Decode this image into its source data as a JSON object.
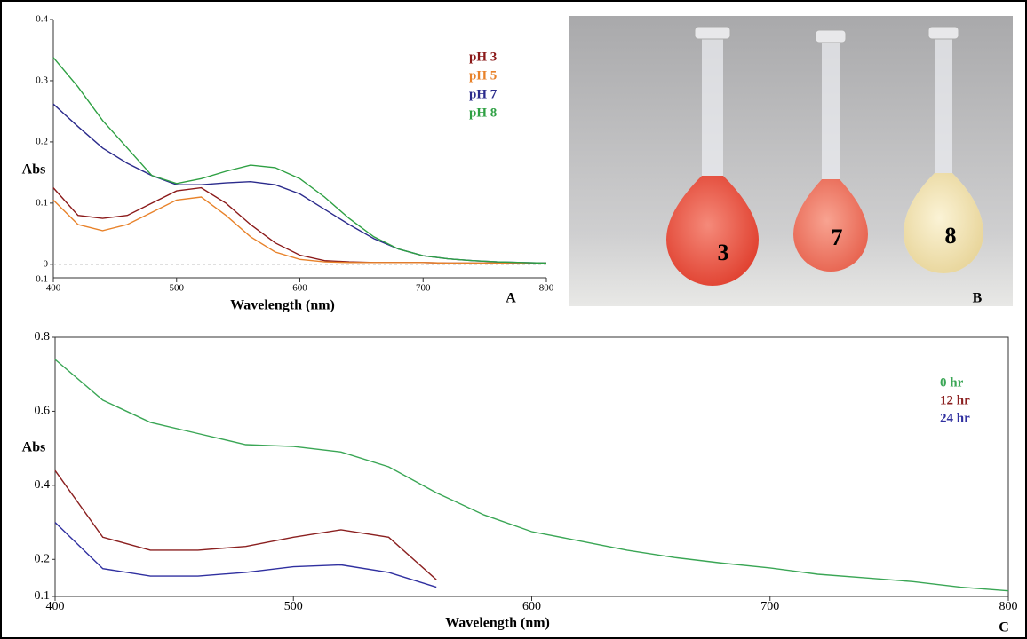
{
  "chart_data": [
    {
      "type": "line",
      "panel_label": "A",
      "x_label": "Wavelength (nm)",
      "y_label": "Abs",
      "x": [
        400,
        420,
        440,
        460,
        480,
        500,
        520,
        540,
        560,
        580,
        600,
        620,
        640,
        660,
        680,
        700,
        720,
        740,
        760,
        780,
        800
      ],
      "xlim": [
        400,
        800
      ],
      "xticks": [
        400,
        500,
        600,
        700,
        800
      ],
      "ylim": [
        -0.022,
        0.4
      ],
      "yticks": [
        0,
        0.1,
        0.2,
        0.3,
        0.4
      ],
      "ymin_label": "0.1",
      "hline": 0,
      "series": [
        {
          "name": "pH 3",
          "color": "#8b1a1a",
          "values": [
            0.125,
            0.08,
            0.075,
            0.08,
            0.1,
            0.12,
            0.125,
            0.1,
            0.065,
            0.035,
            0.015,
            0.006,
            0.004,
            0.003,
            0.003,
            0.003,
            0.002,
            0.002,
            0.002,
            0.002,
            0.002
          ]
        },
        {
          "name": "pH 5",
          "color": "#e8822a",
          "values": [
            0.105,
            0.065,
            0.055,
            0.065,
            0.085,
            0.105,
            0.11,
            0.08,
            0.045,
            0.02,
            0.008,
            0.004,
            0.003,
            0.003,
            0.003,
            0.003,
            0.002,
            0.002,
            0.002,
            0.002,
            0.002
          ]
        },
        {
          "name": "pH 7",
          "color": "#2b2b8c",
          "values": [
            0.262,
            0.225,
            0.19,
            0.165,
            0.145,
            0.13,
            0.13,
            0.133,
            0.135,
            0.13,
            0.115,
            0.09,
            0.065,
            0.042,
            0.025,
            0.014,
            0.009,
            0.006,
            0.004,
            0.003,
            0.002
          ]
        },
        {
          "name": "pH 8",
          "color": "#2ea043",
          "values": [
            0.338,
            0.29,
            0.235,
            0.19,
            0.145,
            0.132,
            0.14,
            0.152,
            0.162,
            0.158,
            0.14,
            0.11,
            0.075,
            0.045,
            0.025,
            0.014,
            0.009,
            0.006,
            0.004,
            0.003,
            0.002
          ]
        }
      ]
    },
    {
      "type": "line",
      "panel_label": "C",
      "x_label": "Wavelength (nm)",
      "y_label": "Abs",
      "x": [
        400,
        420,
        440,
        460,
        480,
        500,
        520,
        540,
        560,
        580,
        600,
        620,
        640,
        660,
        680,
        700,
        720,
        740,
        760,
        780,
        800
      ],
      "xlim": [
        400,
        800
      ],
      "xticks": [
        400,
        500,
        600,
        700,
        800
      ],
      "ylim": [
        0.1,
        0.8
      ],
      "yticks": [
        0.1,
        0.2,
        0.4,
        0.6,
        0.8
      ],
      "series": [
        {
          "name": "0 hr",
          "color": "#3aa655",
          "values": [
            0.74,
            0.63,
            0.57,
            0.54,
            0.51,
            0.505,
            0.49,
            0.45,
            0.38,
            0.32,
            0.275,
            0.25,
            0.225,
            0.205,
            0.19,
            0.177,
            0.16,
            0.15,
            0.14,
            0.125,
            0.115
          ]
        },
        {
          "name": "12 hr",
          "color": "#8b2020",
          "values": [
            0.44,
            0.26,
            0.225,
            0.225,
            0.235,
            0.26,
            0.28,
            0.26,
            0.145,
            null,
            null,
            null,
            null,
            null,
            null,
            null,
            null,
            null,
            null,
            null,
            null
          ]
        },
        {
          "name": "24 hr",
          "color": "#3030a0",
          "values": [
            0.3,
            0.175,
            0.155,
            0.155,
            0.165,
            0.18,
            0.185,
            0.165,
            0.125,
            null,
            null,
            null,
            null,
            null,
            null,
            null,
            null,
            null,
            null,
            null,
            null
          ]
        }
      ]
    }
  ],
  "photo": {
    "panel_label": "B",
    "flask_labels": [
      "3",
      "7",
      "8"
    ]
  }
}
